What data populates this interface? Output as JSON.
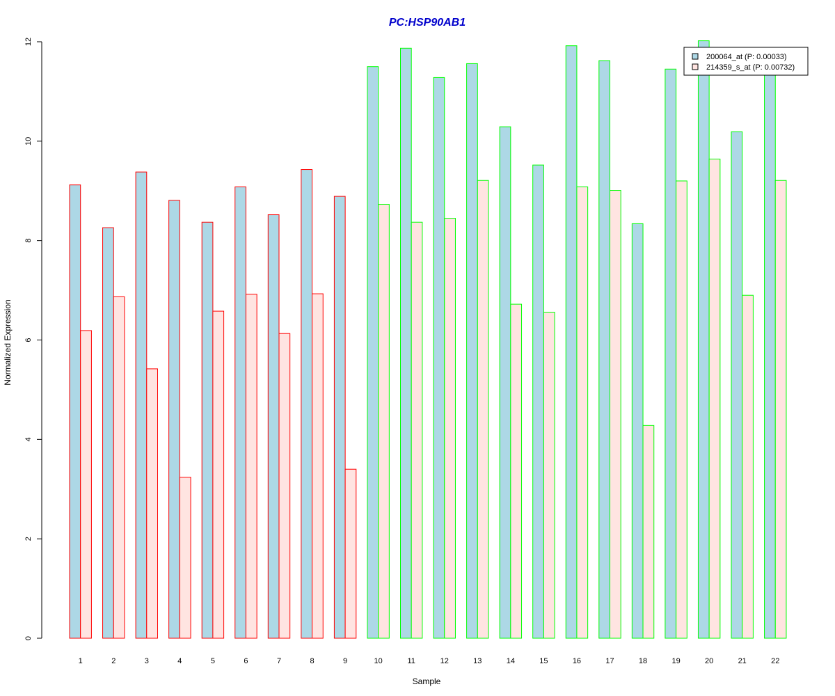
{
  "chart_data": {
    "type": "bar",
    "title": "PC:HSP90AB1",
    "xlabel": "Sample",
    "ylabel": "Normalized Expression",
    "ylim": [
      0,
      12
    ],
    "yticks": [
      "0",
      "2",
      "4",
      "6",
      "8",
      "10",
      "12"
    ],
    "categories": [
      "1",
      "2",
      "3",
      "4",
      "5",
      "6",
      "7",
      "8",
      "9",
      "10",
      "11",
      "12",
      "13",
      "14",
      "15",
      "16",
      "17",
      "18",
      "19",
      "20",
      "21",
      "22"
    ],
    "series": [
      {
        "name": "200064_at (P: 0.00033)",
        "fill": "#add8e6",
        "values": [
          9.12,
          8.26,
          9.38,
          8.81,
          8.37,
          9.08,
          8.52,
          9.43,
          8.89,
          11.5,
          11.87,
          11.28,
          11.56,
          10.29,
          9.52,
          11.92,
          11.62,
          8.34,
          11.45,
          12.02,
          10.19,
          11.33
        ]
      },
      {
        "name": "214359_s_at (P: 0.00732)",
        "fill": "#ffe4e1",
        "values": [
          6.19,
          6.87,
          5.42,
          3.24,
          6.58,
          6.92,
          6.13,
          6.93,
          3.4,
          8.73,
          8.37,
          8.45,
          9.21,
          6.72,
          6.56,
          9.08,
          9.01,
          4.28,
          9.2,
          9.64,
          6.9,
          9.21
        ]
      }
    ],
    "group_border_colors": [
      "#ff0000",
      "#ff0000",
      "#ff0000",
      "#ff0000",
      "#ff0000",
      "#ff0000",
      "#ff0000",
      "#ff0000",
      "#ff0000",
      "#00ff00",
      "#00ff00",
      "#00ff00",
      "#00ff00",
      "#00ff00",
      "#00ff00",
      "#00ff00",
      "#00ff00",
      "#00ff00",
      "#00ff00",
      "#00ff00",
      "#00ff00",
      "#00ff00"
    ],
    "title_color": "#0000cc",
    "legend_position": "top-right",
    "grid": false
  }
}
